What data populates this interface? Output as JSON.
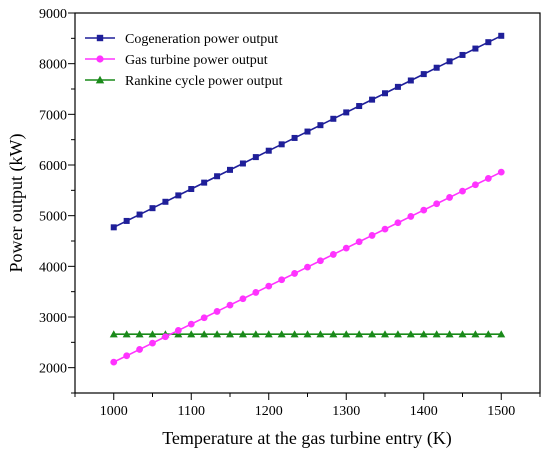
{
  "chart_data": {
    "type": "line",
    "xlabel": "Temperature at the gas turbine entry (K)",
    "ylabel": "Power output (kW)",
    "xlim": [
      950,
      1550
    ],
    "ylim": [
      1500,
      9000
    ],
    "xticks": [
      1000,
      1100,
      1200,
      1300,
      1400,
      1500
    ],
    "xtick_labels": [
      "1000",
      "1100",
      "1200",
      "1300",
      "1400",
      "1500"
    ],
    "yticks": [
      2000,
      3000,
      4000,
      5000,
      6000,
      7000,
      8000,
      9000
    ],
    "ytick_labels": [
      "2000",
      "3000",
      "4000",
      "5000",
      "6000",
      "7000",
      "8000",
      "9000"
    ],
    "grid": false,
    "legend_position": "top-left",
    "x": [
      1000,
      1016.67,
      1033.33,
      1050,
      1066.67,
      1083.33,
      1100,
      1116.67,
      1133.33,
      1150,
      1166.67,
      1183.33,
      1200,
      1216.67,
      1233.33,
      1250,
      1266.67,
      1283.33,
      1300,
      1316.67,
      1333.33,
      1350,
      1366.67,
      1383.33,
      1400,
      1416.67,
      1433.33,
      1450,
      1466.67,
      1483.33,
      1500
    ],
    "series": [
      {
        "name": "Cogeneration power output",
        "color": "#1f1f99",
        "marker": "square",
        "values": [
          4770,
          4896,
          5022,
          5148,
          5274,
          5400,
          5526,
          5652,
          5778,
          5904,
          6030,
          6156,
          6282,
          6408,
          6534,
          6660,
          6786,
          6912,
          7038,
          7164,
          7290,
          7416,
          7542,
          7668,
          7794,
          7920,
          8046,
          8172,
          8298,
          8424,
          8550
        ]
      },
      {
        "name": "Gas turbine power output",
        "color": "#ff33ff",
        "marker": "circle",
        "values": [
          2110,
          2235,
          2360,
          2485,
          2610,
          2735,
          2860,
          2985,
          3110,
          3235,
          3360,
          3485,
          3610,
          3735,
          3860,
          3985,
          4110,
          4235,
          4360,
          4485,
          4610,
          4735,
          4860,
          4985,
          5110,
          5235,
          5360,
          5485,
          5610,
          5735,
          5860
        ]
      },
      {
        "name": "Rankine cycle power output",
        "color": "#1a8a1a",
        "marker": "triangle",
        "values": [
          2660,
          2660,
          2660,
          2660,
          2660,
          2660,
          2660,
          2660,
          2660,
          2660,
          2660,
          2660,
          2660,
          2660,
          2660,
          2660,
          2660,
          2660,
          2660,
          2660,
          2660,
          2660,
          2660,
          2660,
          2660,
          2660,
          2660,
          2660,
          2660,
          2660,
          2660
        ]
      }
    ]
  }
}
